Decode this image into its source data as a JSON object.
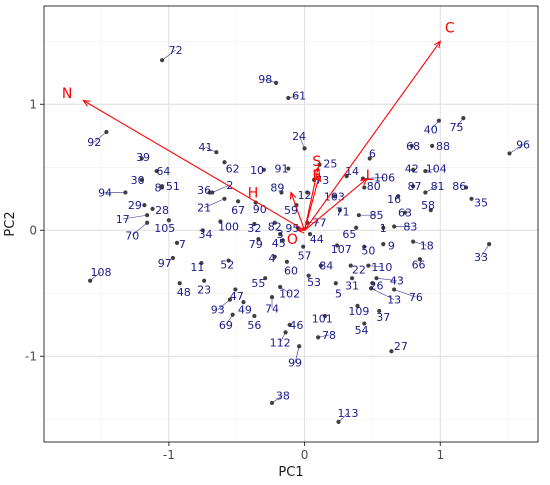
{
  "chart_data": {
    "type": "scatter",
    "subtype": "pca-biplot",
    "title": "",
    "xlabel": "PC1",
    "ylabel": "PC2",
    "xlim": [
      -1.92,
      1.72
    ],
    "ylim": [
      -1.68,
      1.78
    ],
    "xticks": [
      "-1",
      "0",
      "1"
    ],
    "yticks": [
      "-1",
      "0",
      "1"
    ],
    "grid": true,
    "legend": "none",
    "colors": {
      "points": "#3f3f3f",
      "labels": "#1a1a8c",
      "arrows": "#ff0000",
      "grid": "#dedede"
    },
    "vectors": [
      {
        "name": "N",
        "x": -1.63,
        "y": 1.03,
        "lx": -1.75,
        "ly": 1.09
      },
      {
        "name": "C",
        "x": 1.0,
        "y": 1.5,
        "lx": 1.07,
        "ly": 1.61
      },
      {
        "name": "S",
        "x": 0.1,
        "y": 0.5,
        "lx": 0.09,
        "ly": 0.55
      },
      {
        "name": "E",
        "x": 0.11,
        "y": 0.44,
        "lx": 0.09,
        "ly": 0.44
      },
      {
        "name": "L",
        "x": 0.46,
        "y": 0.41,
        "lx": 0.48,
        "ly": 0.44
      },
      {
        "name": "H",
        "x": -0.1,
        "y": 0.3,
        "lx": -0.38,
        "ly": 0.3
      },
      {
        "name": "O",
        "x": -0.05,
        "y": 0.0,
        "lx": -0.09,
        "ly": -0.07
      }
    ],
    "points": [
      {
        "label": "72",
        "x": -1.05,
        "y": 1.35,
        "lx": -0.95,
        "ly": 1.43
      },
      {
        "label": "98",
        "x": -0.21,
        "y": 1.17,
        "lx": -0.29,
        "ly": 1.2
      },
      {
        "label": "61",
        "x": -0.12,
        "y": 1.05,
        "lx": -0.04,
        "ly": 1.07
      },
      {
        "label": "92",
        "x": -1.46,
        "y": 0.78,
        "lx": -1.55,
        "ly": 0.7
      },
      {
        "label": "24",
        "x": 0.0,
        "y": 0.65,
        "lx": -0.04,
        "ly": 0.75
      },
      {
        "label": "41",
        "x": -0.65,
        "y": 0.62,
        "lx": -0.73,
        "ly": 0.66
      },
      {
        "label": "39",
        "x": -1.2,
        "y": 0.57,
        "lx": -1.19,
        "ly": 0.58
      },
      {
        "label": "62",
        "x": -0.59,
        "y": 0.54,
        "lx": -0.53,
        "ly": 0.49
      },
      {
        "label": "64",
        "x": -1.09,
        "y": 0.47,
        "lx": -1.04,
        "ly": 0.47
      },
      {
        "label": "10",
        "x": -0.3,
        "y": 0.48,
        "lx": -0.35,
        "ly": 0.48
      },
      {
        "label": "91",
        "x": -0.12,
        "y": 0.49,
        "lx": -0.17,
        "ly": 0.49
      },
      {
        "label": "25",
        "x": 0.11,
        "y": 0.52,
        "lx": 0.19,
        "ly": 0.53
      },
      {
        "label": "6",
        "x": 0.48,
        "y": 0.57,
        "lx": 0.5,
        "ly": 0.61
      },
      {
        "label": "14",
        "x": 0.31,
        "y": 0.43,
        "lx": 0.35,
        "ly": 0.47
      },
      {
        "label": "106",
        "x": 0.43,
        "y": 0.41,
        "lx": 0.59,
        "ly": 0.42
      },
      {
        "label": "68",
        "x": 0.79,
        "y": 0.67,
        "lx": 0.8,
        "ly": 0.67
      },
      {
        "label": "88",
        "x": 0.94,
        "y": 0.67,
        "lx": 1.02,
        "ly": 0.67
      },
      {
        "label": "40",
        "x": 0.99,
        "y": 0.87,
        "lx": 0.93,
        "ly": 0.8
      },
      {
        "label": "75",
        "x": 1.17,
        "y": 0.89,
        "lx": 1.12,
        "ly": 0.82
      },
      {
        "label": "96",
        "x": 1.51,
        "y": 0.61,
        "lx": 1.61,
        "ly": 0.68
      },
      {
        "label": "42",
        "x": 0.8,
        "y": 0.48,
        "lx": 0.79,
        "ly": 0.49
      },
      {
        "label": "104",
        "x": 0.89,
        "y": 0.47,
        "lx": 0.97,
        "ly": 0.49
      },
      {
        "label": "73",
        "x": 0.07,
        "y": 0.4,
        "lx": 0.13,
        "ly": 0.4
      },
      {
        "label": "30",
        "x": -1.2,
        "y": 0.4,
        "lx": -1.23,
        "ly": 0.4
      },
      {
        "label": "8",
        "x": -1.05,
        "y": 0.35,
        "lx": -1.08,
        "ly": 0.34
      },
      {
        "label": "51",
        "x": -1.05,
        "y": 0.34,
        "lx": -0.97,
        "ly": 0.35
      },
      {
        "label": "36",
        "x": -0.7,
        "y": 0.3,
        "lx": -0.74,
        "ly": 0.32
      },
      {
        "label": "2",
        "x": -0.68,
        "y": 0.3,
        "lx": -0.55,
        "ly": 0.36
      },
      {
        "label": "89",
        "x": -0.17,
        "y": 0.3,
        "lx": -0.2,
        "ly": 0.34
      },
      {
        "label": "12",
        "x": 0.02,
        "y": 0.3,
        "lx": 0.0,
        "ly": 0.28
      },
      {
        "label": "103",
        "x": 0.22,
        "y": 0.27,
        "lx": 0.22,
        "ly": 0.27
      },
      {
        "label": "81",
        "x": 0.89,
        "y": 0.3,
        "lx": 0.98,
        "ly": 0.35
      },
      {
        "label": "87",
        "x": 0.8,
        "y": 0.35,
        "lx": 0.81,
        "ly": 0.35
      },
      {
        "label": "86",
        "x": 1.19,
        "y": 0.34,
        "lx": 1.14,
        "ly": 0.35
      },
      {
        "label": "80",
        "x": 0.44,
        "y": 0.34,
        "lx": 0.51,
        "ly": 0.35
      },
      {
        "label": "16",
        "x": 0.69,
        "y": 0.27,
        "lx": 0.66,
        "ly": 0.25
      },
      {
        "label": "94",
        "x": -1.32,
        "y": 0.3,
        "lx": -1.47,
        "ly": 0.3
      },
      {
        "label": "21",
        "x": -0.59,
        "y": 0.25,
        "lx": -0.74,
        "ly": 0.18
      },
      {
        "label": "67",
        "x": -0.49,
        "y": 0.23,
        "lx": -0.49,
        "ly": 0.16
      },
      {
        "label": "90",
        "x": -0.36,
        "y": 0.22,
        "lx": -0.33,
        "ly": 0.17
      },
      {
        "label": "59",
        "x": -0.06,
        "y": 0.2,
        "lx": -0.1,
        "ly": 0.16
      },
      {
        "label": "71",
        "x": 0.26,
        "y": 0.16,
        "lx": 0.28,
        "ly": 0.15
      },
      {
        "label": "35",
        "x": 1.23,
        "y": 0.25,
        "lx": 1.3,
        "ly": 0.22
      },
      {
        "label": "58",
        "x": 0.93,
        "y": 0.16,
        "lx": 0.91,
        "ly": 0.2
      },
      {
        "label": "28",
        "x": -1.12,
        "y": 0.17,
        "lx": -1.05,
        "ly": 0.16
      },
      {
        "label": "29",
        "x": -1.18,
        "y": 0.2,
        "lx": -1.25,
        "ly": 0.2
      },
      {
        "label": "85",
        "x": 0.4,
        "y": 0.12,
        "lx": 0.53,
        "ly": 0.12
      },
      {
        "label": "63",
        "x": 0.74,
        "y": 0.14,
        "lx": 0.74,
        "ly": 0.14
      },
      {
        "label": "17",
        "x": -1.16,
        "y": 0.12,
        "lx": -1.34,
        "ly": 0.09
      },
      {
        "label": "105",
        "x": -1.0,
        "y": 0.08,
        "lx": -1.03,
        "ly": 0.02
      },
      {
        "label": "100",
        "x": -0.62,
        "y": 0.07,
        "lx": -0.56,
        "ly": 0.03
      },
      {
        "label": "32",
        "x": -0.37,
        "y": 0.05,
        "lx": -0.37,
        "ly": 0.02
      },
      {
        "label": "82",
        "x": -0.22,
        "y": 0.06,
        "lx": -0.22,
        "ly": 0.03
      },
      {
        "label": "95",
        "x": -0.05,
        "y": 0.02,
        "lx": -0.09,
        "ly": 0.02
      },
      {
        "label": "77",
        "x": 0.02,
        "y": 0.06,
        "lx": 0.11,
        "ly": 0.06
      },
      {
        "label": "70",
        "x": -1.16,
        "y": 0.06,
        "lx": -1.27,
        "ly": -0.04
      },
      {
        "label": "1",
        "x": 0.58,
        "y": 0.02,
        "lx": 0.58,
        "ly": 0.02
      },
      {
        "label": "83",
        "x": 0.66,
        "y": 0.03,
        "lx": 0.78,
        "ly": 0.03
      },
      {
        "label": "65",
        "x": 0.38,
        "y": 0.02,
        "lx": 0.33,
        "ly": -0.03
      },
      {
        "label": "34",
        "x": -0.75,
        "y": 0.0,
        "lx": -0.73,
        "ly": -0.03
      },
      {
        "label": "44",
        "x": 0.04,
        "y": -0.03,
        "lx": 0.09,
        "ly": -0.07
      },
      {
        "label": "45",
        "x": -0.16,
        "y": -0.08,
        "lx": -0.19,
        "ly": -0.1
      },
      {
        "label": "79",
        "x": -0.34,
        "y": -0.07,
        "lx": -0.36,
        "ly": -0.11
      },
      {
        "label": "7",
        "x": -0.94,
        "y": -0.1,
        "lx": -0.9,
        "ly": -0.11
      },
      {
        "label": "9",
        "x": 0.58,
        "y": -0.11,
        "lx": 0.64,
        "ly": -0.12
      },
      {
        "label": "18",
        "x": 0.8,
        "y": -0.09,
        "lx": 0.9,
        "ly": -0.12
      },
      {
        "label": "57",
        "x": -0.01,
        "y": -0.13,
        "lx": 0.0,
        "ly": -0.2
      },
      {
        "label": "107",
        "x": 0.24,
        "y": -0.12,
        "lx": 0.27,
        "ly": -0.15
      },
      {
        "label": "50",
        "x": 0.44,
        "y": -0.13,
        "lx": 0.47,
        "ly": -0.16
      },
      {
        "label": "33",
        "x": 1.36,
        "y": -0.11,
        "lx": 1.3,
        "ly": -0.21
      },
      {
        "label": "4",
        "x": -0.22,
        "y": -0.21,
        "lx": -0.24,
        "ly": -0.22
      },
      {
        "label": "97",
        "x": -0.97,
        "y": -0.22,
        "lx": -1.03,
        "ly": -0.26
      },
      {
        "label": "52",
        "x": -0.56,
        "y": -0.24,
        "lx": -0.57,
        "ly": -0.27
      },
      {
        "label": "11",
        "x": -0.76,
        "y": -0.26,
        "lx": -0.79,
        "ly": -0.29
      },
      {
        "label": "60",
        "x": -0.13,
        "y": -0.25,
        "lx": -0.1,
        "ly": -0.32
      },
      {
        "label": "84",
        "x": 0.12,
        "y": -0.28,
        "lx": 0.16,
        "ly": -0.28
      },
      {
        "label": "22",
        "x": 0.34,
        "y": -0.28,
        "lx": 0.4,
        "ly": -0.31
      },
      {
        "label": "110",
        "x": 0.47,
        "y": -0.28,
        "lx": 0.57,
        "ly": -0.29
      },
      {
        "label": "66",
        "x": 0.85,
        "y": -0.23,
        "lx": 0.84,
        "ly": -0.27
      },
      {
        "label": "53",
        "x": 0.03,
        "y": -0.36,
        "lx": 0.07,
        "ly": -0.41
      },
      {
        "label": "43",
        "x": 0.53,
        "y": -0.38,
        "lx": 0.68,
        "ly": -0.4
      },
      {
        "label": "31",
        "x": 0.35,
        "y": -0.38,
        "lx": 0.35,
        "ly": -0.44
      },
      {
        "label": "26",
        "x": 0.5,
        "y": -0.42,
        "lx": 0.53,
        "ly": -0.44
      },
      {
        "label": "5",
        "x": 0.23,
        "y": -0.42,
        "lx": 0.25,
        "ly": -0.5
      },
      {
        "label": "55",
        "x": -0.29,
        "y": -0.38,
        "lx": -0.34,
        "ly": -0.42
      },
      {
        "label": "102",
        "x": -0.18,
        "y": -0.45,
        "lx": -0.11,
        "ly": -0.5
      },
      {
        "label": "48",
        "x": -0.92,
        "y": -0.42,
        "lx": -0.89,
        "ly": -0.49
      },
      {
        "label": "23",
        "x": -0.74,
        "y": -0.4,
        "lx": -0.74,
        "ly": -0.47
      },
      {
        "label": "47",
        "x": -0.51,
        "y": -0.47,
        "lx": -0.5,
        "ly": -0.52
      },
      {
        "label": "76",
        "x": 0.66,
        "y": -0.47,
        "lx": 0.82,
        "ly": -0.53
      },
      {
        "label": "13",
        "x": 0.49,
        "y": -0.46,
        "lx": 0.66,
        "ly": -0.55
      },
      {
        "label": "49",
        "x": -0.45,
        "y": -0.57,
        "lx": -0.44,
        "ly": -0.63
      },
      {
        "label": "74",
        "x": -0.24,
        "y": -0.53,
        "lx": -0.24,
        "ly": -0.62
      },
      {
        "label": "93",
        "x": -0.55,
        "y": -0.55,
        "lx": -0.64,
        "ly": -0.63
      },
      {
        "label": "109",
        "x": 0.39,
        "y": -0.6,
        "lx": 0.4,
        "ly": -0.64
      },
      {
        "label": "101",
        "x": 0.15,
        "y": -0.68,
        "lx": 0.13,
        "ly": -0.7
      },
      {
        "label": "37",
        "x": 0.55,
        "y": -0.64,
        "lx": 0.58,
        "ly": -0.69
      },
      {
        "label": "69",
        "x": -0.53,
        "y": -0.67,
        "lx": -0.58,
        "ly": -0.75
      },
      {
        "label": "56",
        "x": -0.37,
        "y": -0.68,
        "lx": -0.37,
        "ly": -0.75
      },
      {
        "label": "46",
        "x": -0.11,
        "y": -0.75,
        "lx": -0.06,
        "ly": -0.75
      },
      {
        "label": "54",
        "x": 0.44,
        "y": -0.74,
        "lx": 0.42,
        "ly": -0.79
      },
      {
        "label": "78",
        "x": 0.1,
        "y": -0.85,
        "lx": 0.18,
        "ly": -0.83
      },
      {
        "label": "112",
        "x": -0.14,
        "y": -0.81,
        "lx": -0.18,
        "ly": -0.89
      },
      {
        "label": "27",
        "x": 0.64,
        "y": -0.96,
        "lx": 0.71,
        "ly": -0.92
      },
      {
        "label": "99",
        "x": -0.04,
        "y": -0.92,
        "lx": -0.07,
        "ly": -1.05
      },
      {
        "label": "108",
        "x": -1.58,
        "y": -0.4,
        "lx": -1.5,
        "ly": -0.33
      },
      {
        "label": "38",
        "x": -0.24,
        "y": -1.37,
        "lx": -0.16,
        "ly": -1.31
      },
      {
        "label": "113",
        "x": 0.25,
        "y": -1.52,
        "lx": 0.32,
        "ly": -1.45
      },
      {
        "label": "3",
        "x": -0.18,
        "y": -0.03,
        "lx": -0.18,
        "ly": -0.03
      }
    ]
  }
}
